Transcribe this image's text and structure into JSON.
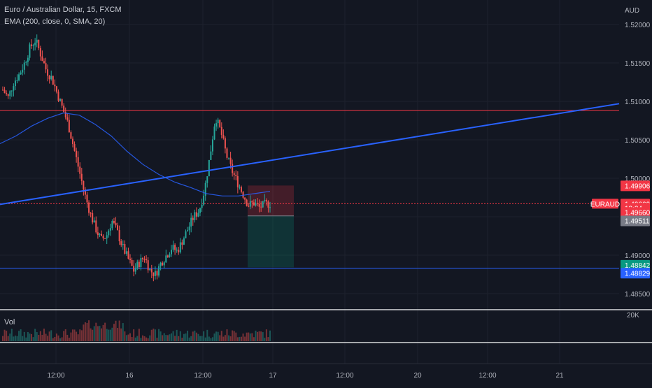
{
  "header": {
    "title": "Euro / Australian Dollar, 15, FXCM",
    "indicator": "EMA (200, close, 0, SMA, 20)",
    "currency": "AUD",
    "volume_label": "Vol",
    "volume_scale": "20K"
  },
  "colors": {
    "background": "#131722",
    "up": "#26a69a",
    "down": "#ef5350",
    "ema": "#2962ff",
    "trendline": "#2962ff",
    "resistance": "#f23645",
    "support": "#2962ff",
    "volume_up": "#26a69a",
    "volume_down": "#ef5350"
  },
  "chart_data": {
    "type": "candlestick",
    "symbol": "EURAUD",
    "timeframe": "15",
    "ylim": [
      1.483,
      1.522
    ],
    "y_ticks": [
      1.52,
      1.515,
      1.51,
      1.505,
      1.5,
      1.495,
      1.49,
      1.485
    ],
    "y_tick_labels": [
      "1.52000",
      "1.51500",
      "1.51000",
      "1.50500",
      "1.50000",
      "1.49500",
      "1.49000",
      "1.48500"
    ],
    "x_labels": [
      "12:00",
      "16",
      "12:00",
      "17",
      "12:00",
      "20",
      "12:00",
      "21"
    ],
    "close_path": [
      1.5115,
      1.5105,
      1.5125,
      1.5135,
      1.515,
      1.517,
      1.518,
      1.516,
      1.514,
      1.513,
      1.511,
      1.509,
      1.507,
      1.504,
      1.501,
      1.498,
      1.4955,
      1.4935,
      1.492,
      1.4925,
      1.4945,
      1.493,
      1.491,
      1.4895,
      1.488,
      1.489,
      1.4898,
      1.488,
      1.4875,
      1.489,
      1.49,
      1.491,
      1.4905,
      1.492,
      1.4935,
      1.495,
      1.4958,
      1.4985,
      1.503,
      1.508,
      1.506,
      1.503,
      1.501,
      1.4995,
      1.498,
      1.4965,
      1.4968,
      1.4962,
      1.4966,
      1.4967
    ],
    "ema_path": [
      1.5045,
      1.5055,
      1.5068,
      1.5078,
      1.5085,
      1.5082,
      1.507,
      1.5055,
      1.5035,
      1.5018,
      1.5005,
      1.4995,
      1.4988,
      1.498,
      1.4977,
      1.4977,
      1.498,
      1.4983
    ],
    "trendline": {
      "x_start": "2024-01-14 18:00",
      "y_start": 1.4966,
      "x_end": "2024-01-21 12:00",
      "y_end": 1.5097
    },
    "horizontal_levels": [
      {
        "price": 1.50881,
        "label": "1.50881",
        "kind": "resistance"
      },
      {
        "price": 1.48829,
        "label": "1.48829",
        "kind": "support"
      }
    ],
    "position_tool": {
      "type": "short",
      "entry": 1.49511,
      "stop": 1.49906,
      "target": 1.48842
    },
    "price_labels": [
      {
        "text": "1.49906",
        "price": 1.49906,
        "bg": "#f23645",
        "fg": "#ffffff"
      },
      {
        "text": "1.49669",
        "price": 1.49669,
        "bg": "#f23645",
        "fg": "#ffffff"
      },
      {
        "text": "13:24",
        "price": 1.49615,
        "bg": "#f23645",
        "fg": "#ffffff"
      },
      {
        "text": "1.49660",
        "price": 1.4956,
        "bg": "#f23645",
        "fg": "#ffffff"
      },
      {
        "text": "1.49511",
        "price": 1.4945,
        "bg": "#787b86",
        "fg": "#ffffff"
      },
      {
        "text": "1.48842",
        "price": 1.48874,
        "bg": "#089981",
        "fg": "#ffffff"
      },
      {
        "text": "1.48829",
        "price": 1.4877,
        "bg": "#2962ff",
        "fg": "#ffffff"
      }
    ],
    "last_price": {
      "price": 1.49669,
      "symbol_tag": "EURAUD"
    }
  }
}
